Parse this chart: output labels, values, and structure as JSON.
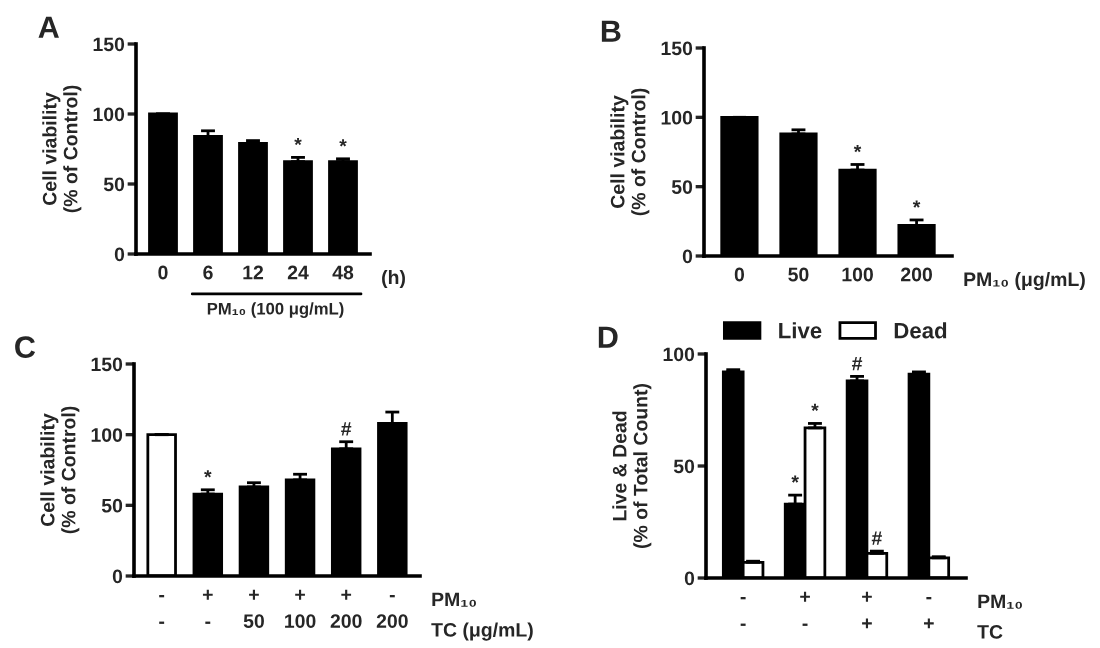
{
  "chart_data": [
    {
      "type": "bar",
      "title": "A",
      "ylabel": "Cell viability\n(% of Control)",
      "categories": [
        "0",
        "6",
        "12",
        "24",
        "48"
      ],
      "values": [
        100,
        84,
        79,
        66,
        66
      ],
      "errors": [
        0,
        4,
        2,
        3,
        2
      ],
      "value_labels": [
        null,
        null,
        null,
        "*",
        "*"
      ],
      "color": "#000000",
      "ylim": [
        0,
        150
      ],
      "yticks": [
        0,
        50,
        100,
        150
      ],
      "annotations": [
        "(h)",
        "PM₁₀ (100 μg/mL)"
      ]
    },
    {
      "type": "bar",
      "title": "B",
      "ylabel": "Cell viability\n(% of Control)",
      "categories": [
        "0",
        "50",
        "100",
        "200"
      ],
      "values": [
        100,
        88,
        62,
        22
      ],
      "errors": [
        0,
        3,
        4,
        4
      ],
      "value_labels": [
        null,
        null,
        "*",
        "*"
      ],
      "color": "#000000",
      "ylim": [
        0,
        150
      ],
      "yticks": [
        0,
        50,
        100,
        150
      ],
      "annotations": [
        "PM₁₀ (μg/mL)"
      ]
    },
    {
      "type": "bar",
      "title": "C",
      "ylabel": "Cell viability\n(% of Control)",
      "categories": [
        "-\n-",
        "+\n-",
        "+\n50",
        "+\n100",
        "+\n200",
        "-\n200"
      ],
      "values": [
        100,
        58,
        63,
        68,
        90,
        108
      ],
      "errors": [
        0,
        3,
        3,
        4,
        5,
        8
      ],
      "value_labels": [
        null,
        "*",
        null,
        null,
        "#",
        null
      ],
      "colors": [
        "#ffffff",
        "#000000",
        "#000000",
        "#000000",
        "#000000",
        "#000000"
      ],
      "ylim": [
        0,
        150
      ],
      "yticks": [
        0,
        50,
        100,
        150
      ],
      "annotations": [
        "PM₁₀",
        "TC (μg/mL)"
      ]
    },
    {
      "type": "bar",
      "title": "D",
      "ylabel": "Live & Dead\n(% of Total Count)",
      "categories": [
        "-\n-",
        "+\n-",
        "+\n+",
        "-\n+"
      ],
      "series": [
        {
          "name": "Live",
          "color": "#000000",
          "values": [
            92,
            33,
            88,
            91
          ],
          "errors": [
            1,
            4,
            2,
            1
          ],
          "value_labels": [
            null,
            "*",
            "#",
            null
          ]
        },
        {
          "name": "Dead",
          "color": "#ffffff",
          "values": [
            7,
            67,
            11,
            9
          ],
          "errors": [
            0.5,
            2,
            1,
            0.5
          ],
          "value_labels": [
            null,
            "*",
            "#",
            null
          ]
        }
      ],
      "ylim": [
        0,
        100
      ],
      "yticks": [
        0,
        50,
        100
      ],
      "legend": "top",
      "annotations": [
        "PM₁₀",
        "TC"
      ]
    }
  ]
}
